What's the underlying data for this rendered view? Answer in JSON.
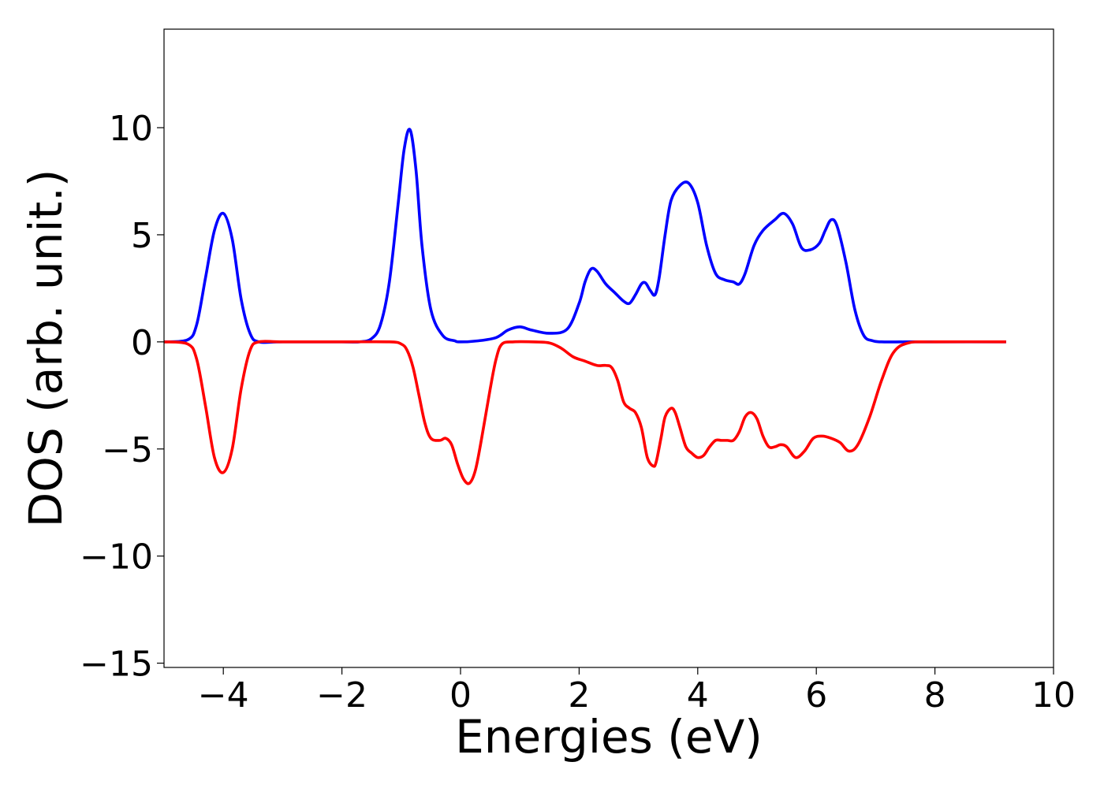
{
  "chart_data": {
    "type": "line",
    "title": "",
    "xlabel": "Energies (eV)",
    "ylabel": "DOS (arb. unit.)",
    "xlim": [
      -5,
      10
    ],
    "ylim": [
      -15.2,
      14.6
    ],
    "xticks": [
      -4,
      -2,
      0,
      2,
      4,
      6,
      8,
      10
    ],
    "xtick_labels": [
      "−4",
      "−2",
      "0",
      "2",
      "4",
      "6",
      "8",
      "10"
    ],
    "yticks": [
      -15,
      -10,
      -5,
      0,
      5,
      10
    ],
    "ytick_labels": [
      "−15",
      "−10",
      "−5",
      "0",
      "5",
      "10"
    ],
    "grid": false,
    "legend": "none",
    "series": [
      {
        "color": "#0000ff",
        "x": [
          -5.0,
          -4.6,
          -4.45,
          -4.3,
          -4.15,
          -4.0,
          -3.85,
          -3.7,
          -3.55,
          -3.4,
          -3.0,
          -2.0,
          -1.7,
          -1.5,
          -1.35,
          -1.2,
          -1.05,
          -0.95,
          -0.85,
          -0.75,
          -0.65,
          -0.5,
          -0.3,
          -0.1,
          0.0,
          0.3,
          0.6,
          0.8,
          1.0,
          1.2,
          1.5,
          1.8,
          2.0,
          2.1,
          2.2,
          2.3,
          2.45,
          2.6,
          2.75,
          2.85,
          2.95,
          3.05,
          3.12,
          3.2,
          3.28,
          3.35,
          3.45,
          3.55,
          3.7,
          3.85,
          4.0,
          4.15,
          4.3,
          4.45,
          4.6,
          4.7,
          4.8,
          4.95,
          5.1,
          5.3,
          5.45,
          5.6,
          5.75,
          5.9,
          6.05,
          6.15,
          6.25,
          6.35,
          6.5,
          6.65,
          6.8,
          6.95,
          7.1,
          7.5,
          8.0,
          9.2
        ],
        "y": [
          0.0,
          0.1,
          0.8,
          3.0,
          5.2,
          6.0,
          4.8,
          2.0,
          0.4,
          0.0,
          0.0,
          0.0,
          0.0,
          0.15,
          0.8,
          2.8,
          6.5,
          9.0,
          9.9,
          8.0,
          4.5,
          1.5,
          0.3,
          0.05,
          0.0,
          0.05,
          0.2,
          0.55,
          0.7,
          0.55,
          0.4,
          0.6,
          1.8,
          2.8,
          3.4,
          3.3,
          2.7,
          2.3,
          1.9,
          1.8,
          2.2,
          2.7,
          2.75,
          2.4,
          2.2,
          3.0,
          5.0,
          6.6,
          7.3,
          7.4,
          6.5,
          4.5,
          3.2,
          2.9,
          2.8,
          2.7,
          3.2,
          4.5,
          5.2,
          5.7,
          6.0,
          5.5,
          4.4,
          4.3,
          4.6,
          5.2,
          5.7,
          5.4,
          3.7,
          1.5,
          0.3,
          0.05,
          0.0,
          0.0,
          0.0,
          0.0
        ]
      },
      {
        "color": "#ff0000",
        "x": [
          -5.0,
          -4.6,
          -4.45,
          -4.3,
          -4.15,
          -4.0,
          -3.85,
          -3.7,
          -3.55,
          -3.4,
          -3.0,
          -2.0,
          -1.2,
          -1.0,
          -0.9,
          -0.8,
          -0.7,
          -0.6,
          -0.5,
          -0.35,
          -0.25,
          -0.15,
          -0.05,
          0.05,
          0.15,
          0.25,
          0.35,
          0.5,
          0.6,
          0.7,
          0.9,
          1.2,
          1.5,
          1.7,
          1.9,
          2.1,
          2.3,
          2.45,
          2.55,
          2.65,
          2.75,
          2.85,
          2.95,
          3.05,
          3.15,
          3.25,
          3.3,
          3.38,
          3.45,
          3.55,
          3.62,
          3.7,
          3.8,
          3.9,
          4.0,
          4.1,
          4.2,
          4.3,
          4.4,
          4.5,
          4.6,
          4.7,
          4.8,
          4.9,
          5.0,
          5.1,
          5.2,
          5.3,
          5.4,
          5.5,
          5.65,
          5.8,
          5.95,
          6.1,
          6.25,
          6.4,
          6.55,
          6.7,
          6.9,
          7.1,
          7.3,
          7.55,
          8.0,
          9.2
        ],
        "y": [
          0.0,
          -0.1,
          -0.8,
          -3.0,
          -5.4,
          -6.1,
          -5.0,
          -2.2,
          -0.4,
          0.0,
          0.0,
          0.0,
          0.0,
          -0.1,
          -0.4,
          -1.2,
          -2.5,
          -3.8,
          -4.5,
          -4.6,
          -4.5,
          -4.8,
          -5.7,
          -6.4,
          -6.6,
          -6.0,
          -4.6,
          -2.2,
          -0.8,
          -0.1,
          0.0,
          0.0,
          -0.05,
          -0.3,
          -0.7,
          -0.9,
          -1.1,
          -1.1,
          -1.2,
          -1.8,
          -2.8,
          -3.1,
          -3.3,
          -4.0,
          -5.4,
          -5.8,
          -5.6,
          -4.5,
          -3.5,
          -3.1,
          -3.3,
          -4.0,
          -4.9,
          -5.2,
          -5.4,
          -5.3,
          -4.9,
          -4.6,
          -4.6,
          -4.6,
          -4.6,
          -4.2,
          -3.5,
          -3.3,
          -3.6,
          -4.4,
          -4.9,
          -4.9,
          -4.8,
          -4.9,
          -5.4,
          -5.1,
          -4.5,
          -4.4,
          -4.5,
          -4.7,
          -5.1,
          -4.8,
          -3.5,
          -1.8,
          -0.5,
          -0.05,
          0.0,
          0.0
        ]
      }
    ]
  }
}
